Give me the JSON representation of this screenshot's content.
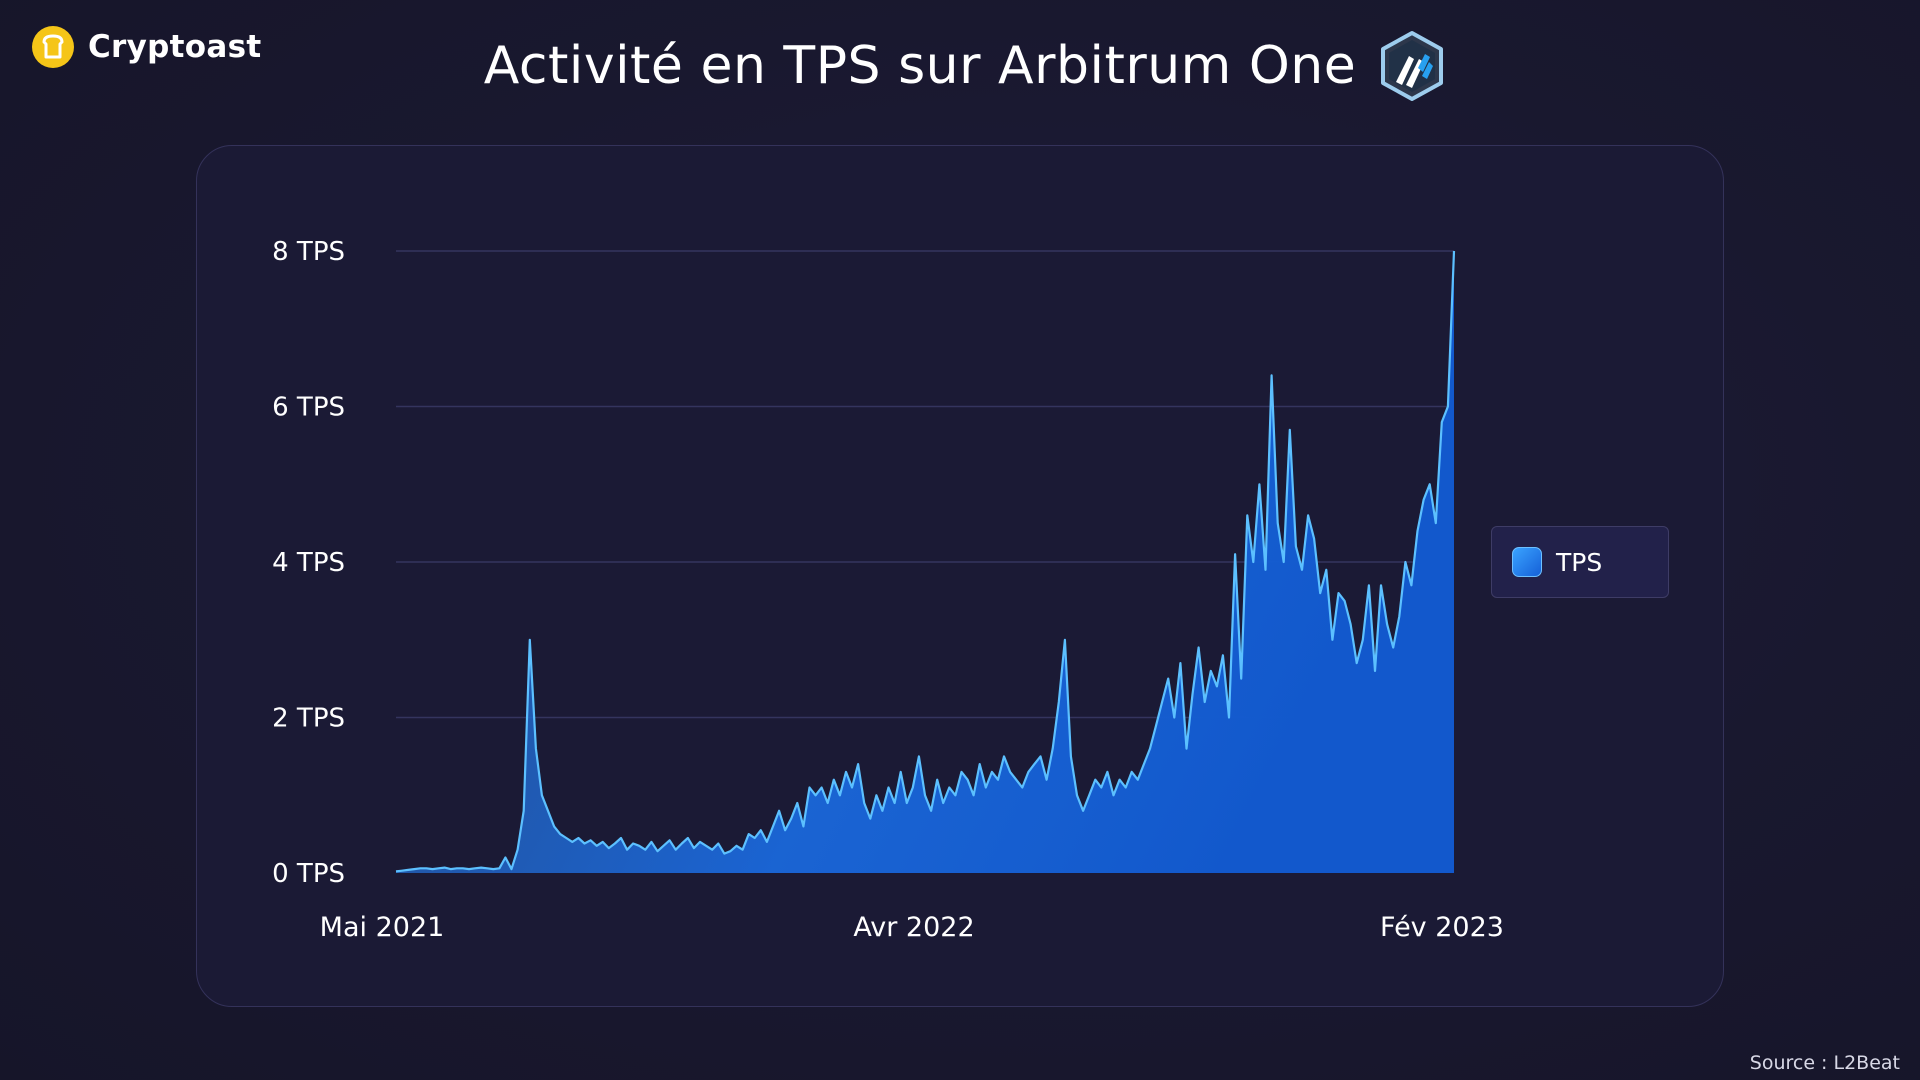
{
  "brand": {
    "name": "Cryptoast",
    "logo_icon": "cryptoast-toast-icon",
    "logo_color": "#f5c518"
  },
  "header": {
    "title": "Activité en TPS sur Arbitrum One",
    "logo_icon": "arbitrum-logo-icon"
  },
  "legend": {
    "label": "TPS"
  },
  "source": "Source : L2Beat",
  "colors": {
    "background": "#19182f",
    "card": "#1b1a35",
    "line": "#5cc0ff",
    "fill_top": "#1f78e6",
    "fill_bottom": "#1556c4",
    "grid": "#34345e"
  },
  "chart_data": {
    "type": "area",
    "series": [
      {
        "name": "TPS",
        "values": [
          0.02,
          0.03,
          0.04,
          0.05,
          0.06,
          0.06,
          0.05,
          0.06,
          0.07,
          0.05,
          0.06,
          0.06,
          0.05,
          0.06,
          0.07,
          0.06,
          0.05,
          0.06,
          0.2,
          0.05,
          0.3,
          0.8,
          3.0,
          1.6,
          1.0,
          0.8,
          0.6,
          0.5,
          0.45,
          0.4,
          0.45,
          0.38,
          0.42,
          0.35,
          0.4,
          0.32,
          0.38,
          0.45,
          0.3,
          0.38,
          0.35,
          0.3,
          0.4,
          0.28,
          0.35,
          0.42,
          0.3,
          0.38,
          0.45,
          0.32,
          0.4,
          0.35,
          0.3,
          0.38,
          0.25,
          0.28,
          0.35,
          0.3,
          0.5,
          0.45,
          0.55,
          0.4,
          0.6,
          0.8,
          0.55,
          0.7,
          0.9,
          0.6,
          1.1,
          1.0,
          1.1,
          0.9,
          1.2,
          1.0,
          1.3,
          1.1,
          1.4,
          0.9,
          0.7,
          1.0,
          0.8,
          1.1,
          0.9,
          1.3,
          0.9,
          1.1,
          1.5,
          1.0,
          0.8,
          1.2,
          0.9,
          1.1,
          1.0,
          1.3,
          1.2,
          1.0,
          1.4,
          1.1,
          1.3,
          1.2,
          1.5,
          1.3,
          1.2,
          1.1,
          1.3,
          1.4,
          1.5,
          1.2,
          1.6,
          2.2,
          3.0,
          1.5,
          1.0,
          0.8,
          1.0,
          1.2,
          1.1,
          1.3,
          1.0,
          1.2,
          1.1,
          1.3,
          1.2,
          1.4,
          1.6,
          1.9,
          2.2,
          2.5,
          2.0,
          2.7,
          1.6,
          2.3,
          2.9,
          2.2,
          2.6,
          2.4,
          2.8,
          2.0,
          4.1,
          2.5,
          4.6,
          4.0,
          5.0,
          3.9,
          6.4,
          4.5,
          4.0,
          5.7,
          4.2,
          3.9,
          4.6,
          4.3,
          3.6,
          3.9,
          3.0,
          3.6,
          3.5,
          3.2,
          2.7,
          3.0,
          3.7,
          2.6,
          3.7,
          3.2,
          2.9,
          3.3,
          4.0,
          3.7,
          4.4,
          4.8,
          5.0,
          4.5,
          5.8,
          6.0,
          8.0
        ]
      }
    ],
    "x_tick_labels": [
      "Mai 2021",
      "Avr 2022",
      "Fév 2023"
    ],
    "y_tick_labels": [
      "0 TPS",
      "2 TPS",
      "4 TPS",
      "6 TPS",
      "8 TPS"
    ],
    "ylim": [
      0,
      8
    ],
    "y_ticks": [
      0,
      2,
      4,
      6,
      8
    ],
    "grid": true,
    "legend_position": "right"
  }
}
